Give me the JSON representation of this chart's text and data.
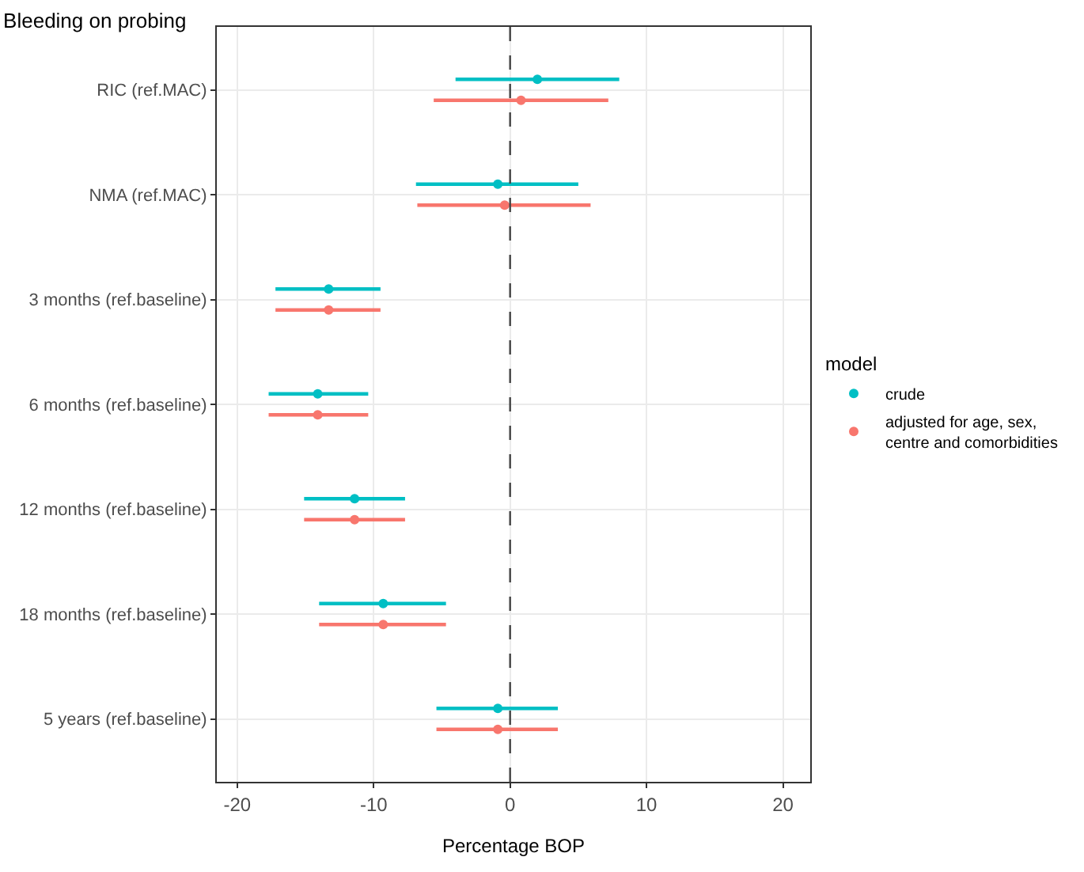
{
  "chart_data": {
    "type": "scatter",
    "title": "Bleeding on probing",
    "xlabel": "Percentage BOP",
    "legend_title": "model",
    "categories": [
      "RIC (ref.MAC)",
      "NMA (ref.MAC)",
      "3 months (ref.baseline)",
      "6 months (ref.baseline)",
      "12 months (ref.baseline)",
      "18 months (ref.baseline)",
      "5 years (ref.baseline)"
    ],
    "series": [
      {
        "name": "crude",
        "color": "#00bfc4",
        "values": [
          2.0,
          -0.9,
          -13.3,
          -14.1,
          -11.4,
          -9.3,
          -0.9
        ],
        "errors": [
          [
            -4.0,
            8.0
          ],
          [
            -6.9,
            5.0
          ],
          [
            -17.2,
            -9.5
          ],
          [
            -17.7,
            -10.4
          ],
          [
            -15.1,
            -7.7
          ],
          [
            -14.0,
            -4.7
          ],
          [
            -5.4,
            3.5
          ]
        ]
      },
      {
        "name": "adjusted for age, sex,\ncentre and comorbidities",
        "color": "#f8766d",
        "values": [
          0.8,
          -0.4,
          -13.3,
          -14.1,
          -11.4,
          -9.3,
          -0.9
        ],
        "errors": [
          [
            -5.6,
            7.2
          ],
          [
            -6.8,
            5.9
          ],
          [
            -17.2,
            -9.5
          ],
          [
            -17.7,
            -10.4
          ],
          [
            -15.1,
            -7.7
          ],
          [
            -14.0,
            -4.7
          ],
          [
            -5.4,
            3.5
          ]
        ]
      }
    ],
    "orientation": "horizontal",
    "xlim": [
      -21.5,
      22
    ],
    "xticks": [
      -20,
      -10,
      0,
      10,
      20
    ],
    "ref_lines": [
      {
        "axis": "x",
        "value": 0,
        "color": "#444444",
        "line_style": "dashed"
      }
    ],
    "grid": true,
    "legend": "right",
    "marker": "circle"
  }
}
